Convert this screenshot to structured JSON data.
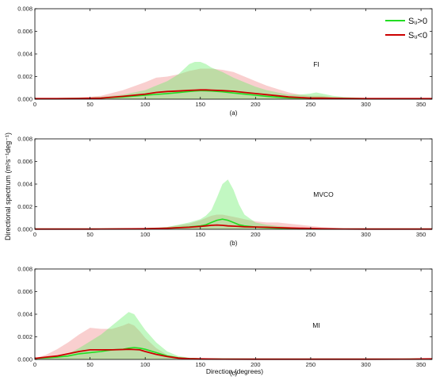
{
  "ylabel": "Directional spectrum (m²s⁻¹deg⁻¹)",
  "xlabel": "Direction (degrees)",
  "legend": {
    "pos": "Sᵤ>0",
    "neg": "Sᵤ<0"
  },
  "colors": {
    "pos_line": "#22dd22",
    "neg_line": "#cc0000",
    "pos_fill": "#66ee66",
    "neg_fill": "#f08080"
  },
  "chart_data": [
    {
      "type": "area",
      "panel_label": "(a)",
      "site": "FI",
      "xlim": [
        0,
        360
      ],
      "ylim": [
        0,
        0.008
      ],
      "xticks": [
        "0",
        "50",
        "100",
        "150",
        "200",
        "250",
        "300",
        "350"
      ],
      "yticks": [
        "0.000",
        "0.002",
        "0.004",
        "0.006",
        "0.008"
      ],
      "x": [
        0,
        20,
        40,
        60,
        80,
        100,
        110,
        120,
        130,
        140,
        145,
        150,
        155,
        160,
        170,
        180,
        190,
        200,
        210,
        220,
        230,
        240,
        250,
        255,
        260,
        270,
        280,
        300,
        320,
        340,
        360
      ],
      "series": [
        {
          "name": "Sᵤ>0",
          "kind": "mean",
          "values": [
            5e-05,
            5e-05,
            6e-05,
            0.0001,
            0.0002,
            0.00035,
            0.00042,
            0.0005,
            0.00058,
            0.00068,
            0.00072,
            0.00075,
            0.00074,
            0.00072,
            0.00065,
            0.00055,
            0.00045,
            0.00035,
            0.00025,
            0.00018,
            0.00012,
            0.0001,
            0.0001,
            0.0001,
            0.0001,
            8e-05,
            6e-05,
            5e-05,
            5e-05,
            5e-05,
            5e-05
          ]
        },
        {
          "name": "Sᵤ<0",
          "kind": "mean",
          "values": [
            5e-05,
            5e-05,
            6e-05,
            0.0001,
            0.00025,
            0.00045,
            0.0006,
            0.00068,
            0.00072,
            0.00078,
            0.0008,
            0.00082,
            0.00082,
            0.0008,
            0.00076,
            0.0007,
            0.0006,
            0.0005,
            0.0004,
            0.0003,
            0.0002,
            0.00015,
            0.0001,
            0.0001,
            9e-05,
            8e-05,
            6e-05,
            5e-05,
            5e-05,
            5e-05,
            5e-05
          ]
        },
        {
          "name": "Sᵤ>0",
          "kind": "spread",
          "values": [
            6e-05,
            8e-05,
            0.0001,
            0.0002,
            0.0004,
            0.0008,
            0.0012,
            0.0016,
            0.0022,
            0.0031,
            0.0033,
            0.0033,
            0.0031,
            0.0028,
            0.0024,
            0.0019,
            0.0015,
            0.0011,
            0.0008,
            0.0006,
            0.0004,
            0.0004,
            0.0005,
            0.0006,
            0.0005,
            0.0003,
            0.0002,
            0.0001,
            8e-05,
            6e-05,
            5e-05
          ]
        },
        {
          "name": "Sᵤ<0",
          "kind": "spread",
          "values": [
            6e-05,
            0.0001,
            0.00015,
            0.0003,
            0.0008,
            0.0015,
            0.0019,
            0.002,
            0.0022,
            0.0025,
            0.0026,
            0.0027,
            0.0027,
            0.0027,
            0.0026,
            0.0024,
            0.002,
            0.0016,
            0.0012,
            0.0009,
            0.0006,
            0.0004,
            0.0003,
            0.0003,
            0.0003,
            0.0002,
            0.00015,
            0.0001,
            8e-05,
            6e-05,
            5e-05
          ]
        }
      ]
    },
    {
      "type": "area",
      "panel_label": "(b)",
      "site": "MVCO",
      "xlim": [
        0,
        360
      ],
      "ylim": [
        0,
        0.008
      ],
      "xticks": [
        "0",
        "50",
        "100",
        "150",
        "200",
        "250",
        "300",
        "350"
      ],
      "yticks": [
        "0.000",
        "0.002",
        "0.004",
        "0.006",
        "0.008"
      ],
      "x": [
        0,
        50,
        100,
        120,
        140,
        150,
        155,
        160,
        165,
        170,
        175,
        180,
        185,
        190,
        200,
        210,
        220,
        230,
        240,
        250,
        260,
        280,
        300,
        360
      ],
      "series": [
        {
          "name": "Sᵤ>0",
          "kind": "mean",
          "values": [
            2e-05,
            2e-05,
            5e-05,
            0.0001,
            0.0002,
            0.0003,
            0.0004,
            0.0006,
            0.0008,
            0.0009,
            0.0008,
            0.0006,
            0.0004,
            0.0003,
            0.0002,
            0.00015,
            0.0001,
            8e-05,
            5e-05,
            4e-05,
            3e-05,
            2e-05,
            2e-05,
            2e-05
          ]
        },
        {
          "name": "Sᵤ<0",
          "kind": "mean",
          "values": [
            2e-05,
            2e-05,
            5e-05,
            0.0001,
            0.00018,
            0.00025,
            0.0003,
            0.00035,
            0.00038,
            0.00035,
            0.0003,
            0.00028,
            0.00025,
            0.00022,
            0.0002,
            0.00018,
            0.00015,
            0.00012,
            0.0001,
            8e-05,
            5e-05,
            3e-05,
            2e-05,
            2e-05
          ]
        },
        {
          "name": "Sᵤ>0",
          "kind": "spread",
          "values": [
            2e-05,
            3e-05,
            0.0001,
            0.0002,
            0.0006,
            0.0009,
            0.0012,
            0.0017,
            0.0028,
            0.004,
            0.0044,
            0.0035,
            0.0022,
            0.0013,
            0.0006,
            0.0004,
            0.0003,
            0.0002,
            0.0001,
            8e-05,
            5e-05,
            3e-05,
            2e-05,
            2e-05
          ]
        },
        {
          "name": "Sᵤ<0",
          "kind": "spread",
          "values": [
            2e-05,
            3e-05,
            0.0001,
            0.0002,
            0.0005,
            0.0008,
            0.001,
            0.0012,
            0.0013,
            0.0013,
            0.0012,
            0.0011,
            0.001,
            0.0009,
            0.0007,
            0.0006,
            0.0006,
            0.0005,
            0.0004,
            0.0003,
            0.0002,
            8e-05,
            4e-05,
            2e-05
          ]
        }
      ]
    },
    {
      "type": "area",
      "panel_label": "(c)",
      "site": "MI",
      "xlim": [
        0,
        360
      ],
      "ylim": [
        0,
        0.008
      ],
      "xticks": [
        "0",
        "50",
        "100",
        "150",
        "200",
        "250",
        "300",
        "350"
      ],
      "yticks": [
        "0.000",
        "0.002",
        "0.004",
        "0.006",
        "0.008"
      ],
      "x": [
        0,
        10,
        20,
        30,
        40,
        50,
        60,
        70,
        80,
        85,
        90,
        95,
        100,
        110,
        120,
        130,
        140,
        150,
        170,
        200,
        250,
        300,
        340,
        350,
        360
      ],
      "series": [
        {
          "name": "Sᵤ>0",
          "kind": "mean",
          "values": [
            0.0001,
            0.00015,
            0.0002,
            0.0003,
            0.0005,
            0.0006,
            0.0007,
            0.00085,
            0.0009,
            0.001,
            0.00105,
            0.001,
            0.0009,
            0.0006,
            0.0003,
            0.00015,
            8e-05,
            5e-05,
            3e-05,
            2e-05,
            2e-05,
            2e-05,
            3e-05,
            4e-05,
            5e-05
          ]
        },
        {
          "name": "Sᵤ<0",
          "kind": "mean",
          "values": [
            0.0001,
            0.0002,
            0.0003,
            0.0005,
            0.0007,
            0.00085,
            0.00085,
            0.00085,
            0.00088,
            0.0009,
            0.00088,
            0.00085,
            0.0007,
            0.00045,
            0.00025,
            0.00012,
            7e-05,
            5e-05,
            3e-05,
            2e-05,
            2e-05,
            2e-05,
            3e-05,
            4e-05,
            5e-05
          ]
        },
        {
          "name": "Sᵤ>0",
          "kind": "spread",
          "values": [
            0.0001,
            0.0002,
            0.0003,
            0.0005,
            0.001,
            0.0016,
            0.0022,
            0.003,
            0.0038,
            0.0042,
            0.004,
            0.0033,
            0.0026,
            0.0015,
            0.0007,
            0.0003,
            0.00015,
            0.0001,
            5e-05,
            3e-05,
            2e-05,
            2e-05,
            4e-05,
            6e-05,
            8e-05
          ]
        },
        {
          "name": "Sᵤ<0",
          "kind": "spread",
          "values": [
            0.0001,
            0.0004,
            0.0009,
            0.0015,
            0.0022,
            0.0028,
            0.0027,
            0.0027,
            0.003,
            0.0032,
            0.003,
            0.0025,
            0.0019,
            0.001,
            0.0004,
            0.0002,
            0.0001,
            6e-05,
            4e-05,
            3e-05,
            2e-05,
            2e-05,
            3e-05,
            4e-05,
            5e-05
          ]
        }
      ]
    }
  ]
}
